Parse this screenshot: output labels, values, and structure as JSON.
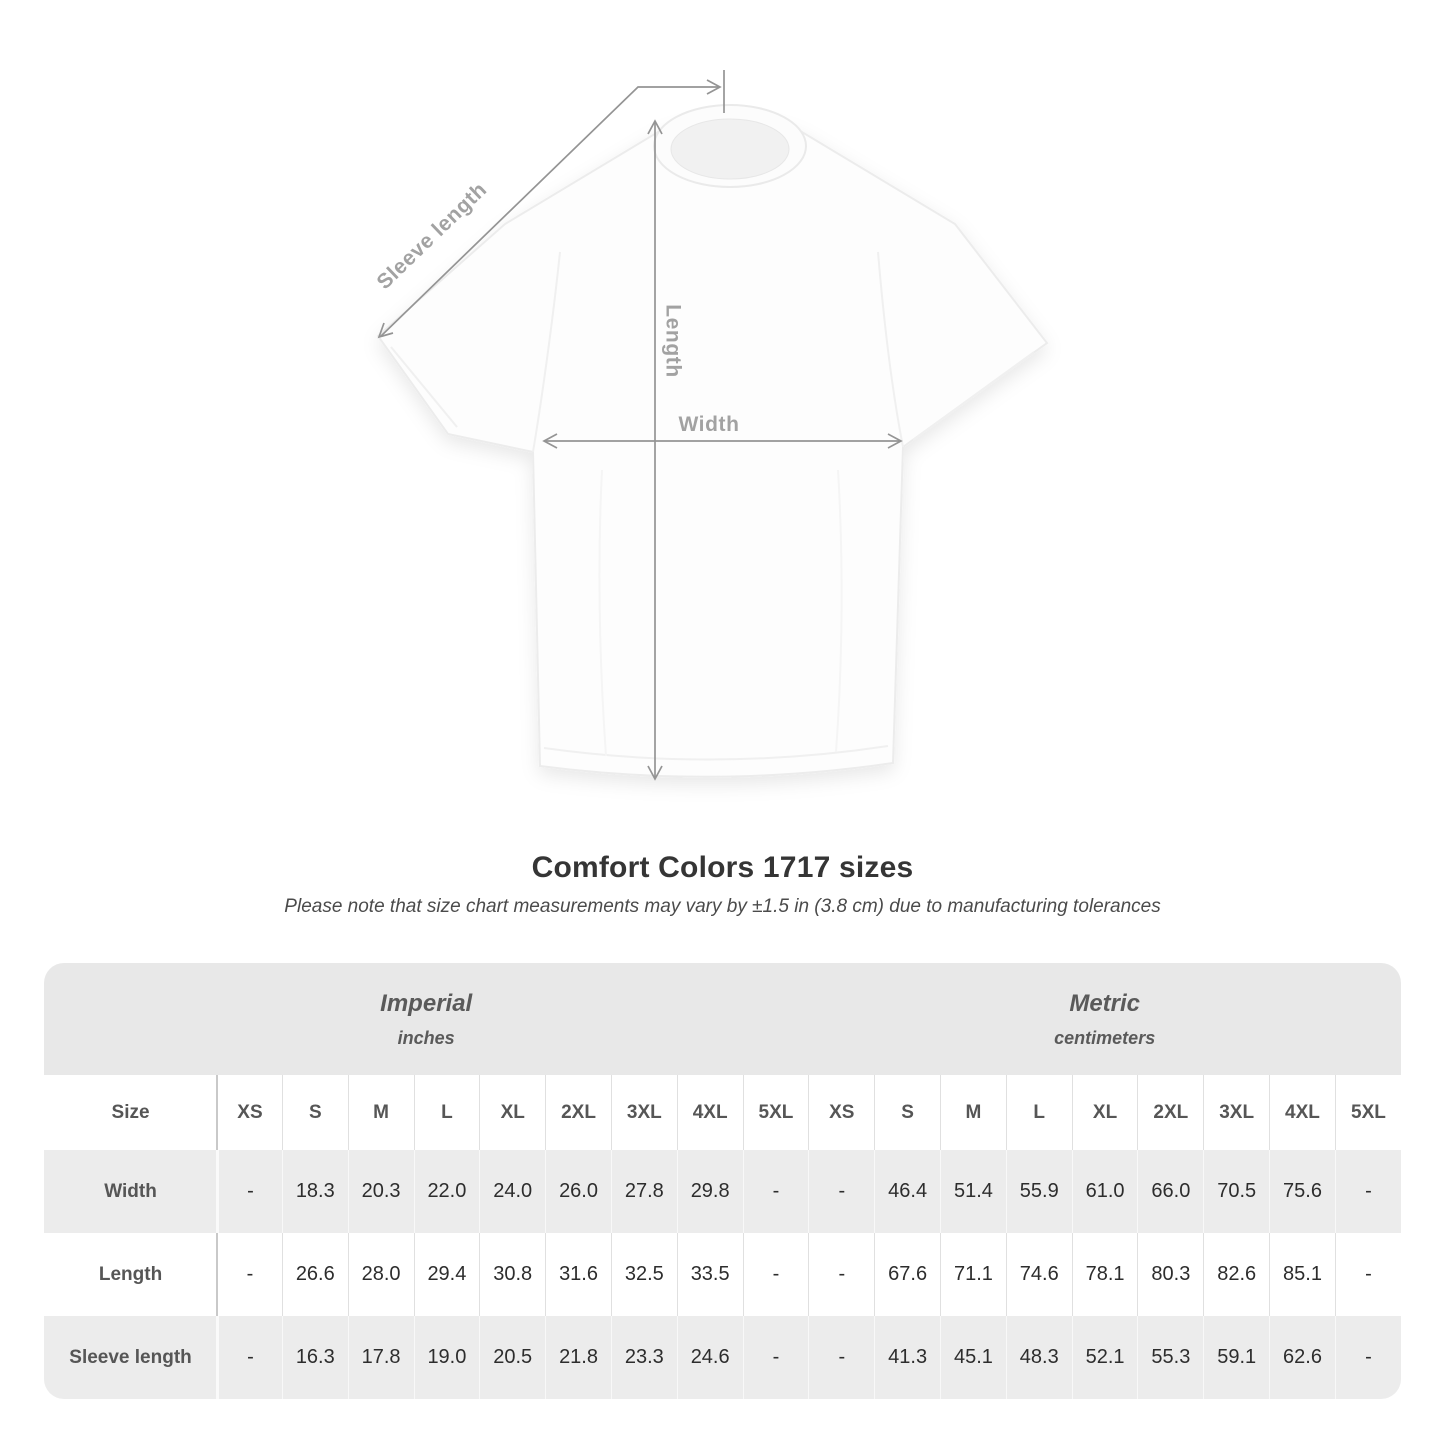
{
  "shirt_diagram": {
    "labels": {
      "sleeve_length": "Sleeve length",
      "length": "Length",
      "width": "Width"
    }
  },
  "heading": {
    "title": "Comfort Colors 1717 sizes",
    "note": "Please note that size chart measurements may vary by ±1.5 in (3.8 cm) due to manufacturing tolerances"
  },
  "size_table": {
    "size_header_label": "Size",
    "unit_groups": [
      {
        "name": "Imperial",
        "unit": "inches"
      },
      {
        "name": "Metric",
        "unit": "centimeters"
      }
    ],
    "sizes": [
      "XS",
      "S",
      "M",
      "L",
      "XL",
      "2XL",
      "3XL",
      "4XL",
      "5XL"
    ],
    "rows": [
      {
        "label": "Width",
        "imperial": [
          "-",
          "18.3",
          "20.3",
          "22.0",
          "24.0",
          "26.0",
          "27.8",
          "29.8",
          "-"
        ],
        "metric": [
          "-",
          "46.4",
          "51.4",
          "55.9",
          "61.0",
          "66.0",
          "70.5",
          "75.6",
          "-"
        ]
      },
      {
        "label": "Length",
        "imperial": [
          "-",
          "26.6",
          "28.0",
          "29.4",
          "30.8",
          "31.6",
          "32.5",
          "33.5",
          "-"
        ],
        "metric": [
          "-",
          "67.6",
          "71.1",
          "74.6",
          "78.1",
          "80.3",
          "82.6",
          "85.1",
          "-"
        ]
      },
      {
        "label": "Sleeve length",
        "imperial": [
          "-",
          "16.3",
          "17.8",
          "19.0",
          "20.5",
          "21.8",
          "23.3",
          "24.6",
          "-"
        ],
        "metric": [
          "-",
          "41.3",
          "45.1",
          "48.3",
          "52.1",
          "55.3",
          "59.1",
          "62.6",
          "-"
        ]
      }
    ]
  },
  "colors": {
    "annotation_gray": "#949494",
    "annotation_label_gray": "#a2a2a2",
    "band_background": "#e8e8e8",
    "shaded_row_background": "#ececec",
    "header_text": "#565656",
    "value_text": "#2d2d2d",
    "title_text": "#353535"
  }
}
